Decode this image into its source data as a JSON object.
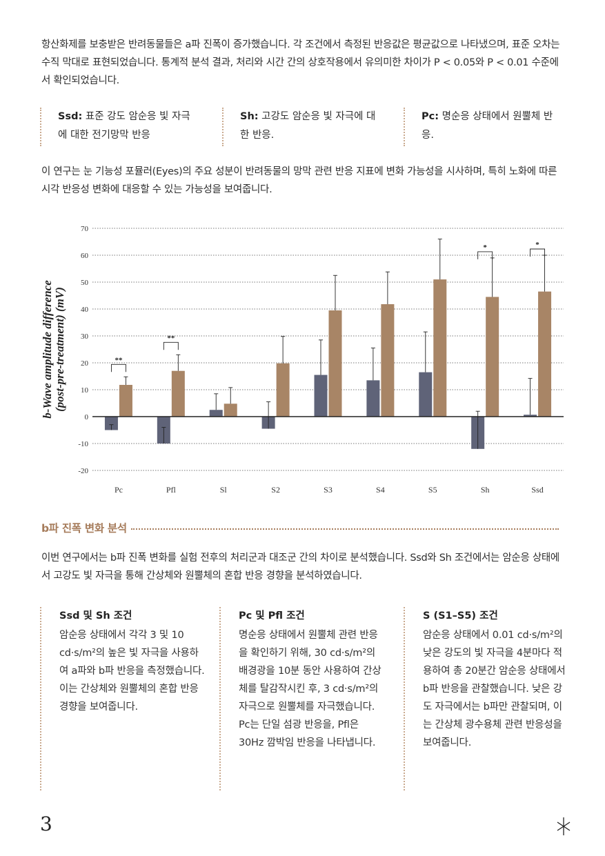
{
  "intro": {
    "p1": "항산화제를 보충받은 반려동물들은 a파 진폭이 증가했습니다. 각 조건에서 측정된 반응값은 평균값으로 나타냈으며, 표준 오차는 수직 막대로 표현되었습니다. 통계적 분석 결과, 처리와 시간 간의 상호작용에서 유의미한 차이가 P < 0.05와 P < 0.01 수준에서 확인되었습니다."
  },
  "definitions": [
    {
      "term": "Ssd:",
      "text": " 표준 강도 암순응 빛 자극에 대한 전기망막 반응"
    },
    {
      "term": "Sh:",
      "text": " 고강도 암순응 빛 자극에 대한 반응."
    },
    {
      "term": "Pc:",
      "text": " 명순응 상태에서 원뿔체 반응."
    }
  ],
  "study": {
    "p2": "이 연구는 눈 기능성 포뮬러(Eyes)의 주요 성분이 반려동물의 망막 관련 반응 지표에 변화 가능성을 시사하며, 특히 노화에 따른 시각 반응성 변화에 대응할 수 있는 가능성을 보여줍니다."
  },
  "chart_data": {
    "type": "bar",
    "ylabel_line1": "b-Wave amplitude difference",
    "ylabel_line2": "(post-pre-treatment) (mV)",
    "categories": [
      "Pc",
      "Pfl",
      "Sl",
      "S2",
      "S3",
      "S4",
      "S5",
      "Sh",
      "Ssd"
    ],
    "ylim": [
      -20,
      70
    ],
    "yticks": [
      -20,
      -10,
      0,
      10,
      20,
      30,
      40,
      50,
      60,
      70
    ],
    "grid": true,
    "series": [
      {
        "color": "#5f6378",
        "values": [
          -5,
          -10,
          2.5,
          -4.5,
          15.5,
          13.5,
          16.5,
          -12,
          0.7
        ],
        "errors": [
          2,
          6,
          6,
          10,
          13,
          12,
          15,
          14,
          13.5
        ]
      },
      {
        "color": "#a88566",
        "values": [
          11.8,
          17,
          4.8,
          19.8,
          39.5,
          41.8,
          51,
          44.5,
          46.5
        ],
        "errors": [
          3,
          6,
          6,
          10,
          13,
          12,
          15,
          14.5,
          13.5
        ]
      }
    ],
    "significance": [
      {
        "category": "Pc",
        "label": "**"
      },
      {
        "category": "Pfl",
        "label": "**"
      },
      {
        "category": "Sh",
        "label": "*"
      },
      {
        "category": "Ssd",
        "label": "*"
      }
    ]
  },
  "section": {
    "title": "b파 진폭 변화 분석",
    "p3": "이번 연구에서는 b파 진폭 변화를 실험 전후의 처리군과 대조군 간의 차이로 분석했습니다. Ssd와 Sh 조건에서는 암순응 상태에서 고강도 빛 자극을 통해 간상체와 원뿔체의 혼합 반응 경향을 분석하였습니다."
  },
  "columns": [
    {
      "title": "Ssd 및 Sh 조건",
      "text": "암순응 상태에서 각각 3 및 10 cd·s/m²의 높은 빛 자극을 사용하여 a파와 b파 반응을 측정했습니다. 이는 간상체와 원뿔체의 혼합 반응 경향을 보여줍니다."
    },
    {
      "title": "Pc 및 Pfl 조건",
      "text": "명순응 상태에서 원뿔체 관련 반응을 확인하기 위해, 30 cd·s/m²의 배경광을 10분 동안 사용하여 간상체를 탈감작시킨 후, 3 cd·s/m²의 자극으로 원뿔체를 자극했습니다. Pc는 단일 섬광 반응을, Pfl은 30Hz 깜박임 반응을 나타냅니다."
    },
    {
      "title": "S (S1–S5) 조건",
      "text": "암순응 상태에서 0.01 cd·s/m²의 낮은 강도의 빛 자극을 4분마다 적용하여 총 20분간 암순응 상태에서 b파 반응을 관찰했습니다. 낮은 강도 자극에서는 b파만 관찰되며, 이는 간상체 광수용체 관련 반응성을 보여줍니다."
    }
  ],
  "footer": {
    "page": "3",
    "icon": "asterisk-star-icon"
  }
}
